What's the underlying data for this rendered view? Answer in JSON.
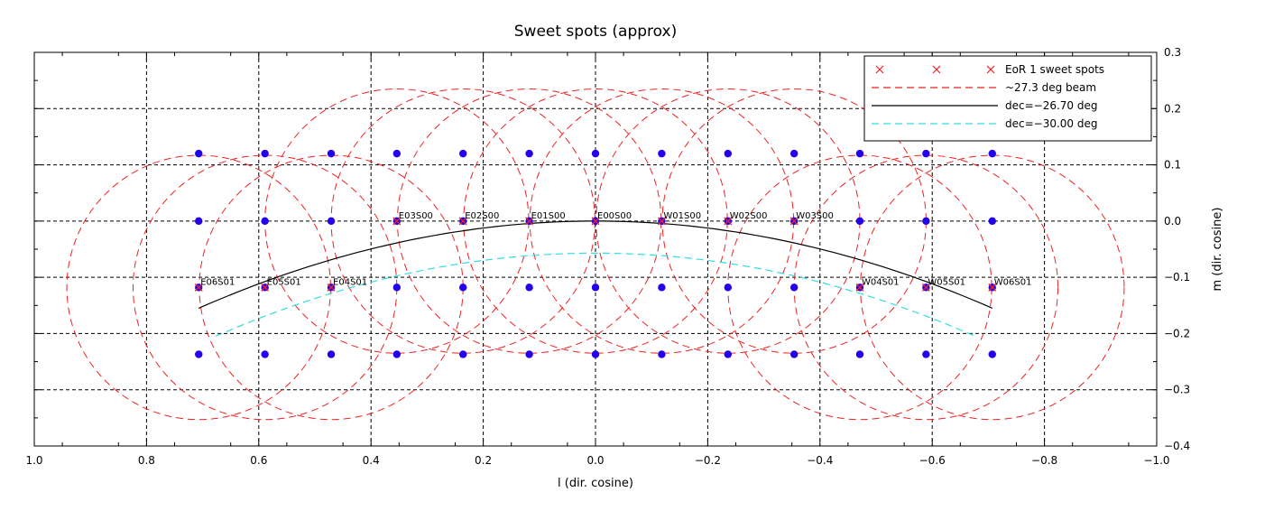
{
  "chart_data": {
    "type": "scatter",
    "title": "Sweet spots (approx)",
    "xlabel": "l (dir. cosine)",
    "ylabel": "m (dir. cosine)",
    "xlim": [
      1.0,
      -1.0
    ],
    "ylim": [
      -0.4,
      0.3
    ],
    "x_ticks": [
      1.0,
      0.8,
      0.6,
      0.4,
      0.2,
      0.0,
      -0.2,
      -0.4,
      -0.6,
      -0.8,
      -1.0
    ],
    "x_tick_labels": [
      "1.0",
      "0.8",
      "0.6",
      "0.4",
      "0.2",
      "0.0",
      "−0.2",
      "−0.4",
      "−0.6",
      "−0.8",
      "−1.0"
    ],
    "y_ticks": [
      -0.4,
      -0.3,
      -0.2,
      -0.1,
      0.0,
      0.1,
      0.2,
      0.3
    ],
    "y_tick_labels": [
      "−0.4",
      "−0.3",
      "−0.2",
      "−0.1",
      "0.0",
      "0.1",
      "0.2",
      "0.3"
    ],
    "grid": true,
    "legend_position": "top-right",
    "colors": {
      "grid_points": "#2200ee",
      "sweet_spots": "#ee2222",
      "beam": "#ee2222",
      "dec_26": "#000000",
      "dec_30": "#33dddd"
    },
    "legend": [
      {
        "label": "EoR 1 sweet spots",
        "style": "x-markers",
        "color": "#ee2222"
      },
      {
        "label": "~27.3 deg beam",
        "style": "dashed",
        "color": "#ee2222"
      },
      {
        "label": "dec=−26.70 deg",
        "style": "solid",
        "color": "#000000"
      },
      {
        "label": "dec=−30.00 deg",
        "style": "dashed",
        "color": "#33dddd"
      }
    ],
    "grid_points": {
      "l": [
        0.707,
        0.589,
        0.471,
        0.354,
        0.236,
        0.118,
        0.0,
        -0.118,
        -0.236,
        -0.354,
        -0.471,
        -0.589,
        -0.707
      ],
      "m": [
        0.12,
        0.0,
        -0.118,
        -0.237
      ]
    },
    "sweet_spots": [
      {
        "label": "E06S01",
        "l": 0.707,
        "m": -0.118
      },
      {
        "label": "E05S01",
        "l": 0.589,
        "m": -0.118
      },
      {
        "label": "E04S01",
        "l": 0.471,
        "m": -0.118
      },
      {
        "label": "E03S00",
        "l": 0.354,
        "m": 0.0
      },
      {
        "label": "E02S00",
        "l": 0.236,
        "m": 0.0
      },
      {
        "label": "E01S00",
        "l": 0.118,
        "m": 0.0
      },
      {
        "label": "E00S00",
        "l": 0.0,
        "m": 0.0
      },
      {
        "label": "W01S00",
        "l": -0.118,
        "m": 0.0
      },
      {
        "label": "W02S00",
        "l": -0.236,
        "m": 0.0
      },
      {
        "label": "W03S00",
        "l": -0.354,
        "m": 0.0
      },
      {
        "label": "W04S01",
        "l": -0.471,
        "m": -0.118
      },
      {
        "label": "W05S01",
        "l": -0.589,
        "m": -0.118
      },
      {
        "label": "W06S01",
        "l": -0.707,
        "m": -0.118
      }
    ],
    "beam_radius": 0.235,
    "dec_lines": [
      {
        "name": "dec=−26.70 deg",
        "l_range": [
          0.707,
          -0.707
        ],
        "m_center": 0.0,
        "m_edge": -0.155
      },
      {
        "name": "dec=−30.00 deg",
        "l_range": [
          0.677,
          -0.677
        ],
        "m_center": -0.057,
        "m_edge": -0.205
      }
    ]
  }
}
